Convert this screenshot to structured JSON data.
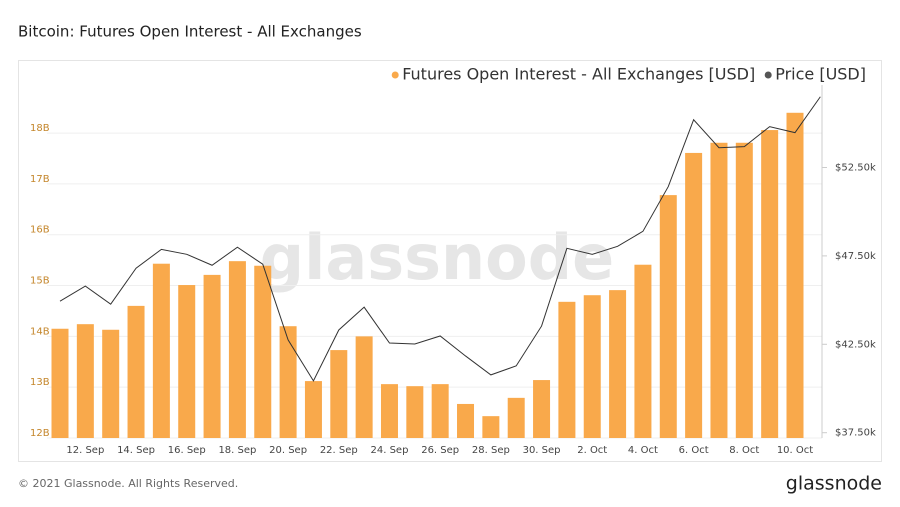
{
  "chart_data": {
    "type": "bar",
    "title": "Bitcoin: Futures Open Interest - All Exchanges",
    "watermark": "glassnode",
    "categories": [
      null,
      "12. Sep",
      null,
      "14. Sep",
      null,
      "16. Sep",
      null,
      "18. Sep",
      null,
      "20. Sep",
      null,
      "22. Sep",
      null,
      "24. Sep",
      null,
      "26. Sep",
      null,
      "28. Sep",
      null,
      "30. Sep",
      null,
      "2. Oct",
      null,
      "4. Oct",
      null,
      "6. Oct",
      null,
      "8. Oct",
      null,
      "10. Oct",
      null
    ],
    "series": [
      {
        "name": "Futures Open Interest - All Exchanges [USD]",
        "type": "bar",
        "color": "#f9a94b",
        "values": [
          14.15,
          14.24,
          14.13,
          14.6,
          15.43,
          15.01,
          15.21,
          15.48,
          15.39,
          14.2,
          13.12,
          13.73,
          14.0,
          13.06,
          13.02,
          13.06,
          12.67,
          12.43,
          12.79,
          13.14,
          14.68,
          14.81,
          14.91,
          15.41,
          16.78,
          17.61,
          17.81,
          17.81,
          18.06,
          18.4,
          null
        ]
      },
      {
        "name": "Price [USD]",
        "type": "line",
        "axis": "y2",
        "color": "#555555",
        "values": [
          44940,
          45790,
          44770,
          46800,
          47870,
          47590,
          46970,
          47990,
          47030,
          42750,
          40430,
          43310,
          44600,
          42570,
          42520,
          42970,
          41840,
          40770,
          41280,
          43530,
          47930,
          47590,
          48040,
          48890,
          51420,
          55200,
          53620,
          53680,
          54810,
          54470,
          56500
        ]
      }
    ],
    "ylim": [
      12,
      18.75
    ],
    "yticks": [
      {
        "value": 12,
        "label": "12B"
      },
      {
        "value": 13,
        "label": "13B"
      },
      {
        "value": 14,
        "label": "14B"
      },
      {
        "value": 15,
        "label": "15B"
      },
      {
        "value": 16,
        "label": "16B"
      },
      {
        "value": 17,
        "label": "17B"
      },
      {
        "value": 18,
        "label": "18B"
      }
    ],
    "y2lim": [
      37200,
      56600
    ],
    "y2ticks": [
      {
        "value": 37500,
        "label": "$37.50k"
      },
      {
        "value": 42500,
        "label": "$42.50k"
      },
      {
        "value": 47500,
        "label": "$47.50k"
      },
      {
        "value": 52500,
        "label": "$52.50k"
      }
    ],
    "grid": true,
    "legend": "top-right"
  },
  "footer": {
    "copyright": "© 2021 Glassnode. All Rights Reserved.",
    "logo": "glassnode"
  }
}
